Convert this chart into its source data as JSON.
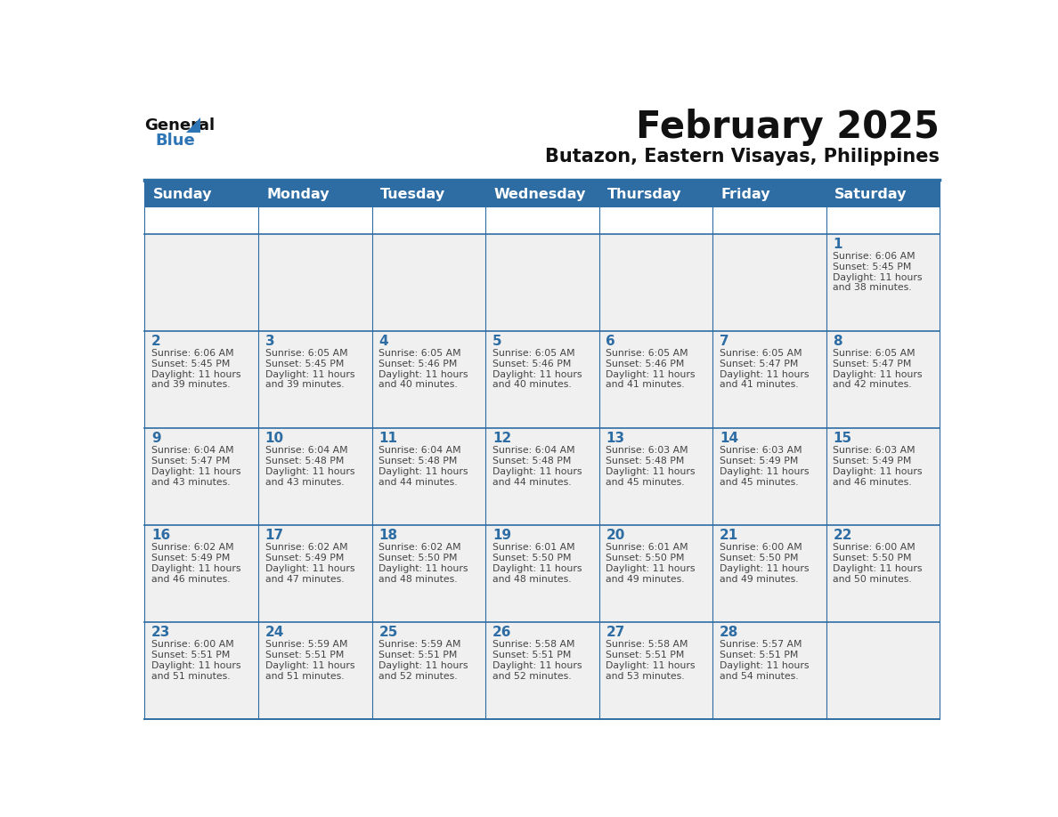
{
  "title": "February 2025",
  "subtitle": "Butazon, Eastern Visayas, Philippines",
  "header_bg": "#2E6DA4",
  "header_text_color": "#FFFFFF",
  "cell_bg": "#F0F0F0",
  "border_color": "#2E6DA4",
  "day_number_color": "#2E6DA4",
  "cell_text_color": "#444444",
  "title_color": "#1a1a1a",
  "days_of_week": [
    "Sunday",
    "Monday",
    "Tuesday",
    "Wednesday",
    "Thursday",
    "Friday",
    "Saturday"
  ],
  "weeks": [
    [
      {
        "day": null,
        "sunrise": null,
        "sunset": null,
        "daylight_minutes": null
      },
      {
        "day": null,
        "sunrise": null,
        "sunset": null,
        "daylight_minutes": null
      },
      {
        "day": null,
        "sunrise": null,
        "sunset": null,
        "daylight_minutes": null
      },
      {
        "day": null,
        "sunrise": null,
        "sunset": null,
        "daylight_minutes": null
      },
      {
        "day": null,
        "sunrise": null,
        "sunset": null,
        "daylight_minutes": null
      },
      {
        "day": null,
        "sunrise": null,
        "sunset": null,
        "daylight_minutes": null
      },
      {
        "day": 1,
        "sunrise": "6:06 AM",
        "sunset": "5:45 PM",
        "daylight_minutes": "38"
      }
    ],
    [
      {
        "day": 2,
        "sunrise": "6:06 AM",
        "sunset": "5:45 PM",
        "daylight_minutes": "39"
      },
      {
        "day": 3,
        "sunrise": "6:05 AM",
        "sunset": "5:45 PM",
        "daylight_minutes": "39"
      },
      {
        "day": 4,
        "sunrise": "6:05 AM",
        "sunset": "5:46 PM",
        "daylight_minutes": "40"
      },
      {
        "day": 5,
        "sunrise": "6:05 AM",
        "sunset": "5:46 PM",
        "daylight_minutes": "40"
      },
      {
        "day": 6,
        "sunrise": "6:05 AM",
        "sunset": "5:46 PM",
        "daylight_minutes": "41"
      },
      {
        "day": 7,
        "sunrise": "6:05 AM",
        "sunset": "5:47 PM",
        "daylight_minutes": "41"
      },
      {
        "day": 8,
        "sunrise": "6:05 AM",
        "sunset": "5:47 PM",
        "daylight_minutes": "42"
      }
    ],
    [
      {
        "day": 9,
        "sunrise": "6:04 AM",
        "sunset": "5:47 PM",
        "daylight_minutes": "43"
      },
      {
        "day": 10,
        "sunrise": "6:04 AM",
        "sunset": "5:48 PM",
        "daylight_minutes": "43"
      },
      {
        "day": 11,
        "sunrise": "6:04 AM",
        "sunset": "5:48 PM",
        "daylight_minutes": "44"
      },
      {
        "day": 12,
        "sunrise": "6:04 AM",
        "sunset": "5:48 PM",
        "daylight_minutes": "44"
      },
      {
        "day": 13,
        "sunrise": "6:03 AM",
        "sunset": "5:48 PM",
        "daylight_minutes": "45"
      },
      {
        "day": 14,
        "sunrise": "6:03 AM",
        "sunset": "5:49 PM",
        "daylight_minutes": "45"
      },
      {
        "day": 15,
        "sunrise": "6:03 AM",
        "sunset": "5:49 PM",
        "daylight_minutes": "46"
      }
    ],
    [
      {
        "day": 16,
        "sunrise": "6:02 AM",
        "sunset": "5:49 PM",
        "daylight_minutes": "46"
      },
      {
        "day": 17,
        "sunrise": "6:02 AM",
        "sunset": "5:49 PM",
        "daylight_minutes": "47"
      },
      {
        "day": 18,
        "sunrise": "6:02 AM",
        "sunset": "5:50 PM",
        "daylight_minutes": "48"
      },
      {
        "day": 19,
        "sunrise": "6:01 AM",
        "sunset": "5:50 PM",
        "daylight_minutes": "48"
      },
      {
        "day": 20,
        "sunrise": "6:01 AM",
        "sunset": "5:50 PM",
        "daylight_minutes": "49"
      },
      {
        "day": 21,
        "sunrise": "6:00 AM",
        "sunset": "5:50 PM",
        "daylight_minutes": "49"
      },
      {
        "day": 22,
        "sunrise": "6:00 AM",
        "sunset": "5:50 PM",
        "daylight_minutes": "50"
      }
    ],
    [
      {
        "day": 23,
        "sunrise": "6:00 AM",
        "sunset": "5:51 PM",
        "daylight_minutes": "51"
      },
      {
        "day": 24,
        "sunrise": "5:59 AM",
        "sunset": "5:51 PM",
        "daylight_minutes": "51"
      },
      {
        "day": 25,
        "sunrise": "5:59 AM",
        "sunset": "5:51 PM",
        "daylight_minutes": "52"
      },
      {
        "day": 26,
        "sunrise": "5:58 AM",
        "sunset": "5:51 PM",
        "daylight_minutes": "52"
      },
      {
        "day": 27,
        "sunrise": "5:58 AM",
        "sunset": "5:51 PM",
        "daylight_minutes": "53"
      },
      {
        "day": 28,
        "sunrise": "5:57 AM",
        "sunset": "5:51 PM",
        "daylight_minutes": "54"
      },
      {
        "day": null,
        "sunrise": null,
        "sunset": null,
        "daylight_minutes": null
      }
    ]
  ]
}
